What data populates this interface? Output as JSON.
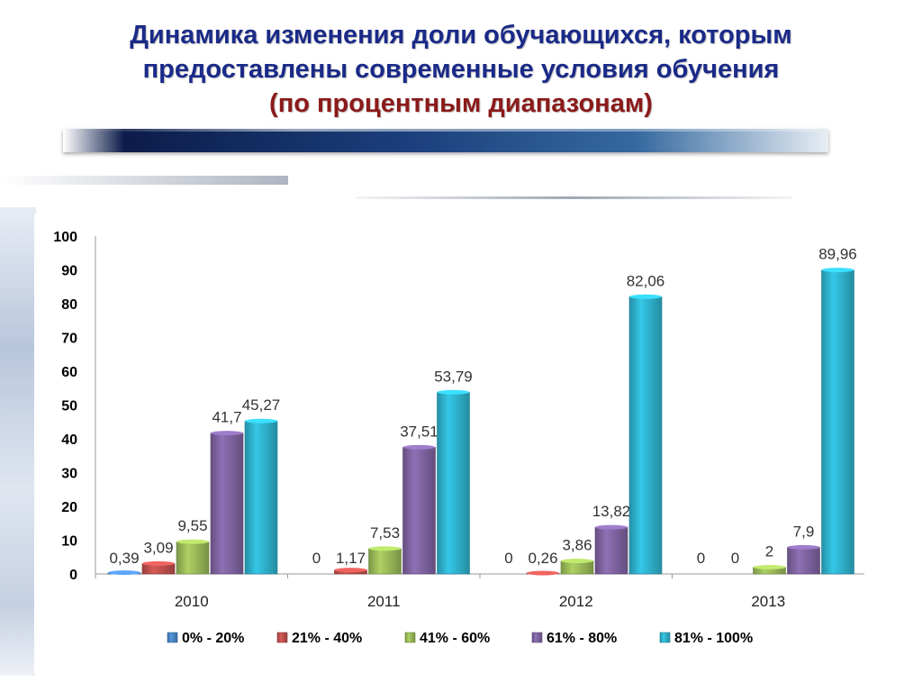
{
  "title": {
    "line1": "Динамика изменения доли обучающихся, которым",
    "line2": "предоставлены современные условия обучения",
    "line3": "(по процентным диапазонам)"
  },
  "chart_data": {
    "type": "bar",
    "categories": [
      "2010",
      "2011",
      "2012",
      "2013"
    ],
    "ylim": [
      0,
      100
    ],
    "yticks": [
      "0",
      "10",
      "20",
      "30",
      "40",
      "50",
      "60",
      "70",
      "80",
      "90",
      "100"
    ],
    "series": [
      {
        "name": "0% - 20%",
        "color": "#4a86c8",
        "values": [
          0.39,
          0,
          0,
          0
        ],
        "labels": [
          "0,39",
          "0",
          "0",
          "0"
        ]
      },
      {
        "name": "21% - 40%",
        "color": "#c0504d",
        "values": [
          3.09,
          1.17,
          0.26,
          0
        ],
        "labels": [
          "3,09",
          "1,17",
          "0,26",
          "0"
        ]
      },
      {
        "name": "41% - 60%",
        "color": "#9bbb59",
        "values": [
          9.55,
          7.53,
          3.86,
          2
        ],
        "labels": [
          "9,55",
          "7,53",
          "3,86",
          "2"
        ]
      },
      {
        "name": "61% - 80%",
        "color": "#8064a2",
        "values": [
          41.7,
          37.51,
          13.82,
          7.9
        ],
        "labels": [
          "41,7",
          "37,51",
          "13,82",
          "7,9"
        ]
      },
      {
        "name": "81% - 100%",
        "color": "#2fb3cf",
        "values": [
          45.27,
          53.79,
          82.06,
          89.96
        ],
        "labels": [
          "45,27",
          "53,79",
          "82,06",
          "89,96"
        ]
      }
    ],
    "legend_position": "bottom",
    "grid": false
  }
}
